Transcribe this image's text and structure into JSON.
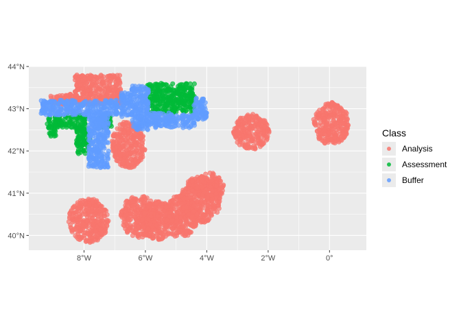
{
  "chart_data": {
    "type": "scatter",
    "title": "",
    "xlabel": "",
    "ylabel": "",
    "xlim": [
      -9.8,
      1.2
    ],
    "ylim": [
      39.65,
      44.0
    ],
    "x_ticks": [
      {
        "value": -8,
        "label": "8°W"
      },
      {
        "value": -6,
        "label": "6°W"
      },
      {
        "value": -4,
        "label": "4°W"
      },
      {
        "value": -2,
        "label": "2°W"
      },
      {
        "value": 0,
        "label": "0°"
      }
    ],
    "y_ticks": [
      {
        "value": 40,
        "label": "40°N"
      },
      {
        "value": 41,
        "label": "41°N"
      },
      {
        "value": 42,
        "label": "42°N"
      },
      {
        "value": 43,
        "label": "43°N"
      },
      {
        "value": 44,
        "label": "44°N"
      }
    ],
    "grid": true,
    "legend_position": "right",
    "legend": {
      "title": "Class",
      "entries": [
        {
          "name": "Analysis",
          "color": "#F8766D"
        },
        {
          "name": "Assessment",
          "color": "#00BA38"
        },
        {
          "name": "Buffer",
          "color": "#619CFF"
        }
      ]
    },
    "series": [
      {
        "name": "Analysis",
        "color": "#F8766D",
        "regions": [
          {
            "shape": "ellipse",
            "cx": -7.85,
            "cy": 40.35,
            "rx": 0.65,
            "ry": 0.52
          },
          {
            "shape": "ellipse",
            "cx": -6.2,
            "cy": 40.45,
            "rx": 0.6,
            "ry": 0.5
          },
          {
            "shape": "ellipse",
            "cx": -5.6,
            "cy": 40.35,
            "rx": 0.55,
            "ry": 0.45
          },
          {
            "shape": "ellipse",
            "cx": -4.85,
            "cy": 40.45,
            "rx": 0.55,
            "ry": 0.5
          },
          {
            "shape": "ellipse",
            "cx": -4.2,
            "cy": 40.85,
            "rx": 0.65,
            "ry": 0.55
          },
          {
            "shape": "ellipse",
            "cx": -3.9,
            "cy": 41.15,
            "rx": 0.45,
            "ry": 0.33
          },
          {
            "shape": "ellipse",
            "cx": -2.55,
            "cy": 42.45,
            "rx": 0.58,
            "ry": 0.42
          },
          {
            "shape": "ellipse",
            "cx": 0.05,
            "cy": 42.65,
            "rx": 0.58,
            "ry": 0.5
          },
          {
            "shape": "rect",
            "x0": -8.3,
            "x1": -6.8,
            "y0": 43.1,
            "y1": 43.8
          },
          {
            "shape": "ellipse",
            "cx": -6.55,
            "cy": 42.15,
            "rx": 0.55,
            "ry": 0.55
          },
          {
            "shape": "rect",
            "x0": -9.1,
            "x1": -8.3,
            "y0": 43.1,
            "y1": 43.35
          }
        ]
      },
      {
        "name": "Assessment",
        "color": "#00BA38",
        "regions": [
          {
            "shape": "rect",
            "x0": -5.95,
            "x1": -4.4,
            "y0": 42.9,
            "y1": 43.6
          },
          {
            "shape": "rect",
            "x0": -9.2,
            "x1": -7.95,
            "y0": 42.55,
            "y1": 42.85
          },
          {
            "shape": "rect",
            "x0": -9.15,
            "x1": -8.9,
            "y0": 42.35,
            "y1": 42.6
          },
          {
            "shape": "rect",
            "x0": -8.25,
            "x1": -7.8,
            "y0": 41.9,
            "y1": 42.55
          },
          {
            "shape": "rect",
            "x0": -7.55,
            "x1": -7.1,
            "y0": 42.55,
            "y1": 42.85
          }
        ]
      },
      {
        "name": "Buffer",
        "color": "#619CFF",
        "regions": [
          {
            "shape": "rect",
            "x0": -9.4,
            "x1": -6.9,
            "y0": 42.85,
            "y1": 43.2
          },
          {
            "shape": "rect",
            "x0": -7.85,
            "x1": -7.2,
            "y0": 41.6,
            "y1": 42.9
          },
          {
            "shape": "rect",
            "x0": -6.45,
            "x1": -5.9,
            "y0": 42.5,
            "y1": 43.55
          },
          {
            "shape": "rect",
            "x0": -6.8,
            "x1": -6.4,
            "y0": 42.8,
            "y1": 43.4
          },
          {
            "shape": "rect",
            "x0": -5.95,
            "x1": -4.4,
            "y0": 42.55,
            "y1": 42.9
          },
          {
            "shape": "rect",
            "x0": -4.45,
            "x1": -4.0,
            "y0": 42.75,
            "y1": 43.25
          }
        ]
      }
    ]
  }
}
